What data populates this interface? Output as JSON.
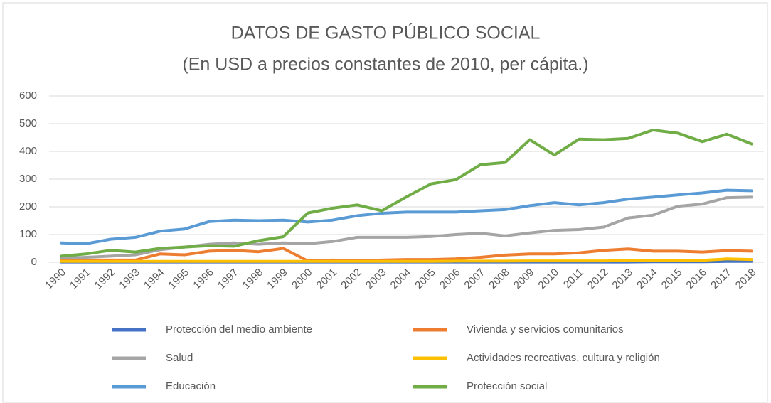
{
  "chart_data": {
    "type": "line",
    "title": "DATOS DE GASTO PÚBLICO SOCIAL",
    "subtitle": "(En USD a precios constantes de 2010, per cápita.)",
    "categories": [
      "1990",
      "1991",
      "1992",
      "1993",
      "1994",
      "1995",
      "1996",
      "1997",
      "1998",
      "1999",
      "2000",
      "2001",
      "2002",
      "2003",
      "2004",
      "2005",
      "2006",
      "2007",
      "2008",
      "2009",
      "2010",
      "2011",
      "2012",
      "2013",
      "2014",
      "2015",
      "2016",
      "2017",
      "2018"
    ],
    "series": [
      {
        "name": "Protección del medio ambiente",
        "color": "#4472c4",
        "values": [
          1,
          1,
          1,
          1,
          1,
          1,
          1,
          1,
          1,
          1,
          1,
          1,
          1,
          1,
          1,
          1,
          1,
          1,
          1,
          1,
          1,
          1,
          1,
          1,
          2,
          2,
          2,
          3,
          3
        ]
      },
      {
        "name": "Vivienda y servicios comunitarios",
        "color": "#ed7d31",
        "values": [
          8,
          8,
          8,
          8,
          30,
          27,
          40,
          43,
          38,
          50,
          5,
          8,
          6,
          8,
          10,
          10,
          12,
          18,
          26,
          30,
          30,
          34,
          43,
          48,
          40,
          40,
          37,
          42,
          40
        ]
      },
      {
        "name": "Salud",
        "color": "#a5a5a5",
        "values": [
          15,
          18,
          22,
          27,
          45,
          55,
          65,
          70,
          65,
          70,
          67,
          75,
          90,
          90,
          90,
          93,
          100,
          105,
          95,
          106,
          115,
          118,
          127,
          160,
          170,
          202,
          210,
          233,
          235
        ]
      },
      {
        "name": "Actividades recreativas, cultura y religión",
        "color": "#ffc000",
        "values": [
          3,
          3,
          3,
          3,
          3,
          3,
          3,
          3,
          3,
          3,
          3,
          3,
          3,
          3,
          3,
          3,
          4,
          4,
          4,
          5,
          5,
          5,
          5,
          6,
          6,
          7,
          7,
          12,
          10
        ]
      },
      {
        "name": "Educación",
        "color": "#5b9bd5",
        "values": [
          70,
          67,
          83,
          90,
          112,
          120,
          147,
          152,
          150,
          152,
          145,
          152,
          168,
          177,
          181,
          181,
          181,
          186,
          190,
          204,
          215,
          207,
          215,
          228,
          235,
          243,
          250,
          260,
          258
        ]
      },
      {
        "name": "Protección social",
        "color": "#70ad47",
        "values": [
          22,
          30,
          43,
          37,
          50,
          55,
          60,
          58,
          78,
          92,
          178,
          195,
          207,
          186,
          236,
          283,
          298,
          352,
          360,
          442,
          387,
          444,
          442,
          447,
          477,
          466,
          435,
          462,
          427
        ]
      }
    ],
    "ylim": [
      0,
      600
    ],
    "yticks": [
      0,
      100,
      200,
      300,
      400,
      500,
      600
    ],
    "grid": true
  }
}
